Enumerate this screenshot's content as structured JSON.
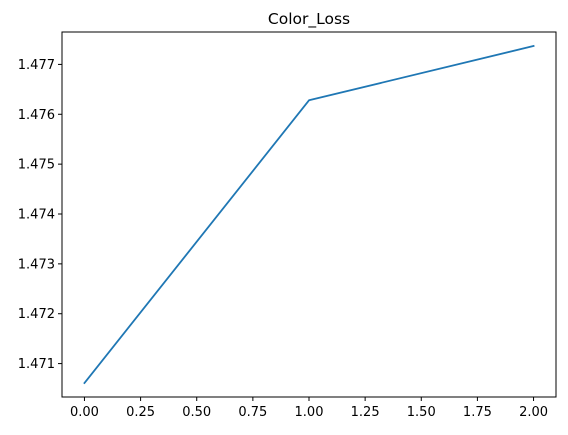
{
  "chart_data": {
    "type": "line",
    "title": "Color_Loss",
    "xlabel": "",
    "ylabel": "",
    "x": [
      0,
      1,
      2
    ],
    "series": [
      {
        "values": [
          1.47061,
          1.47628,
          1.47737
        ],
        "color": "#1f77b4"
      }
    ],
    "xlim": [
      -0.1,
      2.1
    ],
    "ylim": [
      1.47033,
      1.47765
    ],
    "x_ticks": [
      0.0,
      0.25,
      0.5,
      0.75,
      1.0,
      1.25,
      1.5,
      1.75,
      2.0
    ],
    "x_tick_labels": [
      "0.00",
      "0.25",
      "0.50",
      "0.75",
      "1.00",
      "1.25",
      "1.50",
      "1.75",
      "2.00"
    ],
    "y_ticks": [
      1.471,
      1.472,
      1.473,
      1.474,
      1.475,
      1.476,
      1.477
    ],
    "y_tick_labels": [
      "1.471",
      "1.472",
      "1.473",
      "1.474",
      "1.475",
      "1.476",
      "1.477"
    ],
    "grid": false,
    "legend": false
  }
}
